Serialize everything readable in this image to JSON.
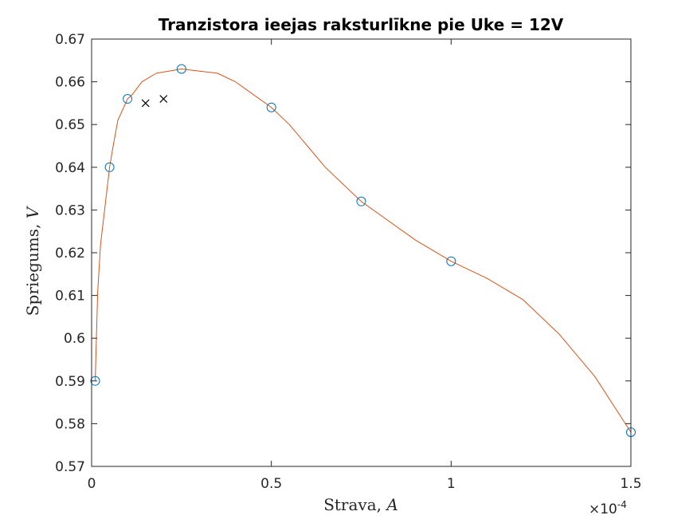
{
  "chart_data": {
    "type": "scatter",
    "title": "Tranzistora ieejas raksturlīkne pie Uke = 12V",
    "xlabel": {
      "text": "Strava, ",
      "var": "A"
    },
    "ylabel": {
      "text": "Spriegums, ",
      "var": "V"
    },
    "x_exponent": {
      "base": "×10",
      "power": "-4"
    },
    "xlim": [
      0,
      0.00015
    ],
    "ylim": [
      0.57,
      0.67
    ],
    "x_ticks": [
      0,
      5e-05,
      0.0001,
      0.00015
    ],
    "x_tick_labels": [
      "0",
      "0.5",
      "1",
      "1.5"
    ],
    "y_ticks": [
      0.57,
      0.58,
      0.59,
      0.6,
      0.61,
      0.62,
      0.63,
      0.64,
      0.65,
      0.66,
      0.67
    ],
    "y_tick_labels": [
      "0.57",
      "0.58",
      "0.59",
      "0.6",
      "0.61",
      "0.62",
      "0.63",
      "0.64",
      "0.65",
      "0.66",
      "0.67"
    ],
    "grid": false,
    "series": [
      {
        "marker": "circle",
        "color": "#0072BD",
        "points": [
          [
            1e-06,
            0.59
          ],
          [
            5e-06,
            0.64
          ],
          [
            1e-05,
            0.656
          ],
          [
            2.5e-05,
            0.663
          ],
          [
            5e-05,
            0.654
          ],
          [
            7.5e-05,
            0.632
          ],
          [
            0.0001,
            0.618
          ],
          [
            0.00015,
            0.578
          ]
        ]
      },
      {
        "marker": "x",
        "color": "#000000",
        "points": [
          [
            1.5e-05,
            0.655
          ],
          [
            2e-05,
            0.656
          ]
        ]
      },
      {
        "marker": "line",
        "color": "#D95319",
        "points": [
          [
            1e-06,
            0.59
          ],
          [
            1.7e-06,
            0.611
          ],
          [
            2.5e-06,
            0.622
          ],
          [
            5e-06,
            0.64
          ],
          [
            6e-06,
            0.645
          ],
          [
            7.3e-06,
            0.651
          ],
          [
            1e-05,
            0.656
          ],
          [
            1.13e-05,
            0.657
          ],
          [
            1.4e-05,
            0.66
          ],
          [
            1.8e-05,
            0.662
          ],
          [
            2.5e-05,
            0.663
          ],
          [
            3e-05,
            0.6625
          ],
          [
            3.5e-05,
            0.662
          ],
          [
            4e-05,
            0.66
          ],
          [
            4.5e-05,
            0.657
          ],
          [
            5e-05,
            0.654
          ],
          [
            5.5e-05,
            0.65
          ],
          [
            6e-05,
            0.645
          ],
          [
            6.5e-05,
            0.64
          ],
          [
            7e-05,
            0.636
          ],
          [
            7.5e-05,
            0.632
          ],
          [
            8e-05,
            0.629
          ],
          [
            9e-05,
            0.623
          ],
          [
            0.0001,
            0.618
          ],
          [
            0.00011,
            0.614
          ],
          [
            0.00012,
            0.609
          ],
          [
            0.00013,
            0.601
          ],
          [
            0.00014,
            0.591
          ],
          [
            0.00015,
            0.578
          ]
        ]
      }
    ]
  }
}
